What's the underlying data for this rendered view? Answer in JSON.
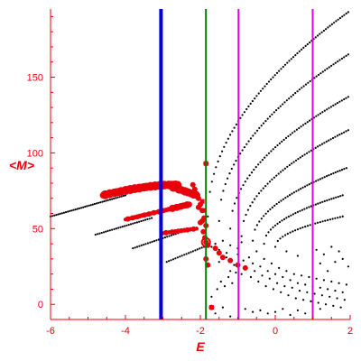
{
  "chart_data": {
    "type": "scatter",
    "title": "",
    "xlabel": "E",
    "ylabel": "<M>",
    "xlim": [
      -6,
      2
    ],
    "ylim": [
      -10,
      195
    ],
    "grid": false,
    "xticks": [
      -6,
      -4,
      -2,
      0,
      2
    ],
    "yticks": [
      0,
      50,
      100,
      150
    ],
    "axis_color": "#e8000b",
    "vertical_lines": [
      {
        "x": -3.05,
        "color": "#0000e0",
        "width": "thick"
      },
      {
        "x": -1.85,
        "color": "#008000",
        "width": "thin"
      },
      {
        "x": -0.98,
        "color": "#e000e0",
        "width": "thin"
      },
      {
        "x": 1.0,
        "color": "#e000e0",
        "width": "thin"
      }
    ],
    "series": [
      {
        "color": "#000000",
        "marker": "small-dot",
        "bands": [
          {
            "x_start": -6.0,
            "x_end": -4.0,
            "y_start": 58,
            "y_end": 72,
            "n": 40
          },
          {
            "x_start": -4.8,
            "x_end": -3.3,
            "y_start": 46,
            "y_end": 57,
            "n": 28
          },
          {
            "x_start": -3.8,
            "x_end": -2.6,
            "y_start": 37,
            "y_end": 47,
            "n": 22
          },
          {
            "x_start": -2.9,
            "x_end": -1.9,
            "y_start": 28,
            "y_end": 38,
            "n": 18
          },
          {
            "x_start": -1.8,
            "x_end": 1.95,
            "y_start": 58,
            "y_end": 193,
            "curve": "sqrt",
            "n": 70
          },
          {
            "x_start": -1.5,
            "x_end": 1.95,
            "y_start": 55,
            "y_end": 165,
            "curve": "sqrt",
            "n": 62
          },
          {
            "x_start": -1.2,
            "x_end": 1.95,
            "y_start": 50,
            "y_end": 137,
            "curve": "sqrt",
            "n": 56
          },
          {
            "x_start": -0.9,
            "x_end": 1.95,
            "y_start": 45,
            "y_end": 115,
            "curve": "sqrt",
            "n": 50
          },
          {
            "x_start": -0.6,
            "x_end": 1.9,
            "y_start": 42,
            "y_end": 90,
            "curve": "sqrt",
            "n": 44
          },
          {
            "x_start": -0.3,
            "x_end": 1.8,
            "y_start": 40,
            "y_end": 72,
            "curve": "sqrt",
            "n": 36
          },
          {
            "x_start": 0.0,
            "x_end": 1.8,
            "y_start": 38,
            "y_end": 58,
            "curve": "sqrt",
            "n": 28
          }
        ],
        "points": [
          [
            -1.5,
            28
          ],
          [
            -1.3,
            31
          ],
          [
            -1.2,
            22
          ],
          [
            -1.1,
            26
          ],
          [
            -1.0,
            33
          ],
          [
            -0.9,
            20
          ],
          [
            -0.85,
            29
          ],
          [
            -0.8,
            24
          ],
          [
            -0.7,
            31
          ],
          [
            -0.65,
            18
          ],
          [
            -0.6,
            27
          ],
          [
            -0.55,
            22
          ],
          [
            -0.5,
            35
          ],
          [
            -0.45,
            15
          ],
          [
            -0.4,
            25
          ],
          [
            -0.35,
            19
          ],
          [
            -0.3,
            30
          ],
          [
            -0.25,
            12
          ],
          [
            -0.2,
            22
          ],
          [
            -0.15,
            17
          ],
          [
            -0.1,
            27
          ],
          [
            -0.05,
            10
          ],
          [
            0.0,
            20
          ],
          [
            0.05,
            14
          ],
          [
            0.1,
            24
          ],
          [
            0.15,
            8
          ],
          [
            0.2,
            18
          ],
          [
            0.25,
            12
          ],
          [
            0.3,
            22
          ],
          [
            0.35,
            6
          ],
          [
            0.4,
            16
          ],
          [
            0.45,
            11
          ],
          [
            0.5,
            20
          ],
          [
            0.55,
            4
          ],
          [
            0.6,
            14
          ],
          [
            0.65,
            9
          ],
          [
            0.7,
            19
          ],
          [
            0.75,
            3
          ],
          [
            0.8,
            13
          ],
          [
            0.85,
            8
          ],
          [
            0.9,
            18
          ],
          [
            0.95,
            2
          ],
          [
            1.0,
            12
          ],
          [
            1.05,
            7
          ],
          [
            1.1,
            17
          ],
          [
            1.15,
            1
          ],
          [
            1.2,
            11
          ],
          [
            1.25,
            6
          ],
          [
            1.3,
            16
          ],
          [
            1.35,
            0
          ],
          [
            1.4,
            10
          ],
          [
            1.45,
            5
          ],
          [
            1.5,
            15
          ],
          [
            1.55,
            -1
          ],
          [
            1.6,
            9
          ],
          [
            1.65,
            4
          ],
          [
            1.7,
            14
          ],
          [
            1.75,
            -2
          ],
          [
            1.8,
            8
          ],
          [
            1.85,
            3
          ],
          [
            1.9,
            13
          ],
          [
            1.95,
            25
          ],
          [
            1.8,
            30
          ],
          [
            1.7,
            35
          ],
          [
            1.6,
            28
          ],
          [
            1.5,
            38
          ],
          [
            1.4,
            22
          ],
          [
            1.3,
            33
          ],
          [
            1.2,
            27
          ],
          [
            1.1,
            36
          ],
          [
            -0.8,
            -3
          ],
          [
            -0.6,
            -5
          ],
          [
            -0.4,
            -4
          ],
          [
            -0.2,
            -6
          ],
          [
            0.0,
            -5
          ],
          [
            0.2,
            -3
          ],
          [
            0.4,
            -7
          ],
          [
            0.6,
            -4
          ],
          [
            0.8,
            -6
          ],
          [
            1.2,
            -3
          ],
          [
            -1.4,
            -2
          ],
          [
            -1.6,
            -6
          ],
          [
            -1.2,
            -8
          ],
          [
            -1.7,
            5
          ],
          [
            -1.55,
            10
          ],
          [
            -1.45,
            15
          ],
          [
            -1.35,
            12
          ],
          [
            -1.25,
            18
          ],
          [
            -1.15,
            14
          ],
          [
            -1.05,
            21
          ],
          [
            -1.7,
            38
          ],
          [
            -1.6,
            40
          ],
          [
            -1.5,
            36
          ],
          [
            -1.4,
            42
          ],
          [
            -1.3,
            34
          ],
          [
            -1.2,
            39
          ],
          [
            -1.0,
            37
          ],
          [
            -0.9,
            41
          ],
          [
            0.3,
            35
          ],
          [
            0.6,
            32
          ]
        ]
      },
      {
        "color": "#e8000b",
        "marker": "blob",
        "bands": [
          {
            "x_start": -4.6,
            "x_end": -2.6,
            "y_start": 72,
            "y_end": 79,
            "curve": "arc",
            "n": 34,
            "size": 5
          },
          {
            "x_start": -2.8,
            "x_end": -2.1,
            "y_start": 78,
            "y_end": 72,
            "n": 10,
            "size": 5
          },
          {
            "x_start": -4.0,
            "x_end": -2.8,
            "y_start": 56,
            "y_end": 63,
            "n": 20,
            "size": 3
          },
          {
            "x_start": -2.8,
            "x_end": -2.3,
            "y_start": 63,
            "y_end": 66,
            "n": 10,
            "size": 4
          },
          {
            "x_start": -3.0,
            "x_end": -2.1,
            "y_start": 47,
            "y_end": 50,
            "n": 12,
            "size": 3
          }
        ],
        "points": [
          [
            -2.2,
            79
          ],
          [
            -2.15,
            76
          ],
          [
            -2.1,
            73
          ],
          [
            -2.05,
            70
          ],
          [
            -2.0,
            66
          ],
          [
            -1.95,
            62
          ],
          [
            -1.9,
            57
          ],
          [
            -1.85,
            52
          ],
          [
            -2.0,
            54
          ],
          [
            -1.95,
            55
          ],
          [
            -2.05,
            64
          ],
          [
            -1.92,
            48
          ],
          [
            -1.88,
            44
          ],
          [
            -1.85,
            41
          ],
          [
            -1.8,
            39
          ],
          [
            -1.85,
            30
          ],
          [
            -1.8,
            26
          ],
          [
            -1.85,
            93
          ],
          [
            -1.7,
            -2
          ],
          [
            -1.6,
            37
          ],
          [
            -1.5,
            34
          ],
          [
            -1.4,
            31
          ],
          [
            -1.2,
            29
          ],
          [
            -1.0,
            26
          ],
          [
            -0.8,
            24
          ]
        ],
        "squares": [
          [
            -1.85,
            93
          ],
          [
            -1.7,
            -2
          ],
          [
            -1.95,
            68
          ],
          [
            -1.9,
            62
          ]
        ],
        "rings": [
          [
            -1.85,
            41
          ]
        ]
      }
    ]
  }
}
